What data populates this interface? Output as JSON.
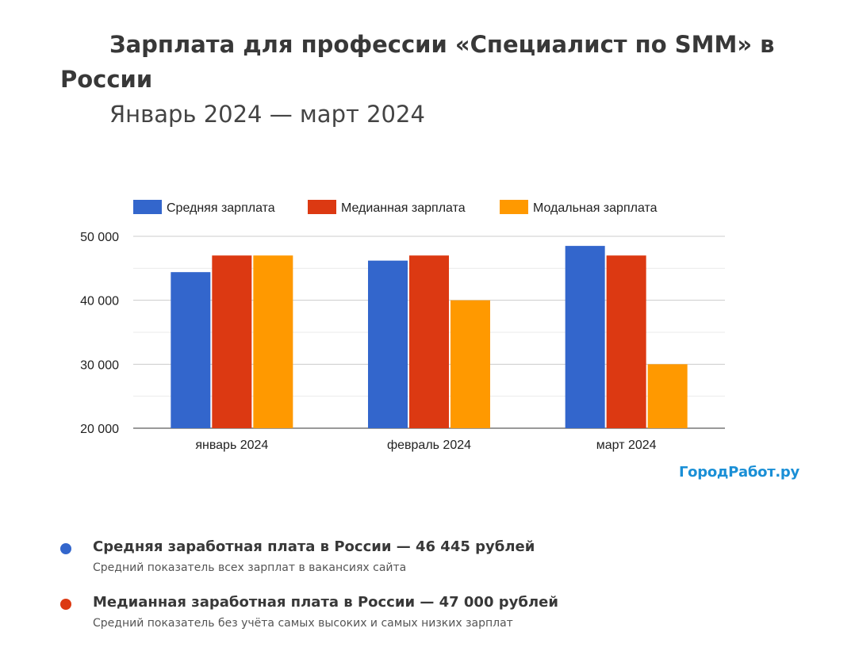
{
  "header": {
    "title": "Зарплата для профессии «Специалист по SMM» в России",
    "subtitle": "Январь 2024 — март 2024"
  },
  "watermark": "ГородРабот.ру",
  "chart_data": {
    "type": "bar",
    "categories": [
      "январь 2024",
      "февраль 2024",
      "март 2024"
    ],
    "series": [
      {
        "name": "Средняя зарплата",
        "color": "#3366cc",
        "values": [
          44400,
          46200,
          48500
        ]
      },
      {
        "name": "Медианная зарплата",
        "color": "#dc3912",
        "values": [
          47000,
          47000,
          47000
        ]
      },
      {
        "name": "Модальная зарплата",
        "color": "#ff9900",
        "values": [
          47000,
          40000,
          30000
        ]
      }
    ],
    "ylim": [
      20000,
      50000
    ],
    "yticks": [
      20000,
      30000,
      40000,
      50000
    ],
    "ytick_labels": [
      "20 000",
      "30 000",
      "40 000",
      "50 000"
    ],
    "grid": true,
    "legend_position": "top"
  },
  "info": [
    {
      "color": "#3366cc",
      "heading": "Средняя заработная плата в России — 46 445 рублей",
      "description": "Средний показатель всех зарплат в вакансиях сайта"
    },
    {
      "color": "#dc3912",
      "heading": "Медианная заработная плата в России — 47 000 рублей",
      "description": "Средний показатель без учёта самых высоких и самых низких зарплат"
    }
  ]
}
